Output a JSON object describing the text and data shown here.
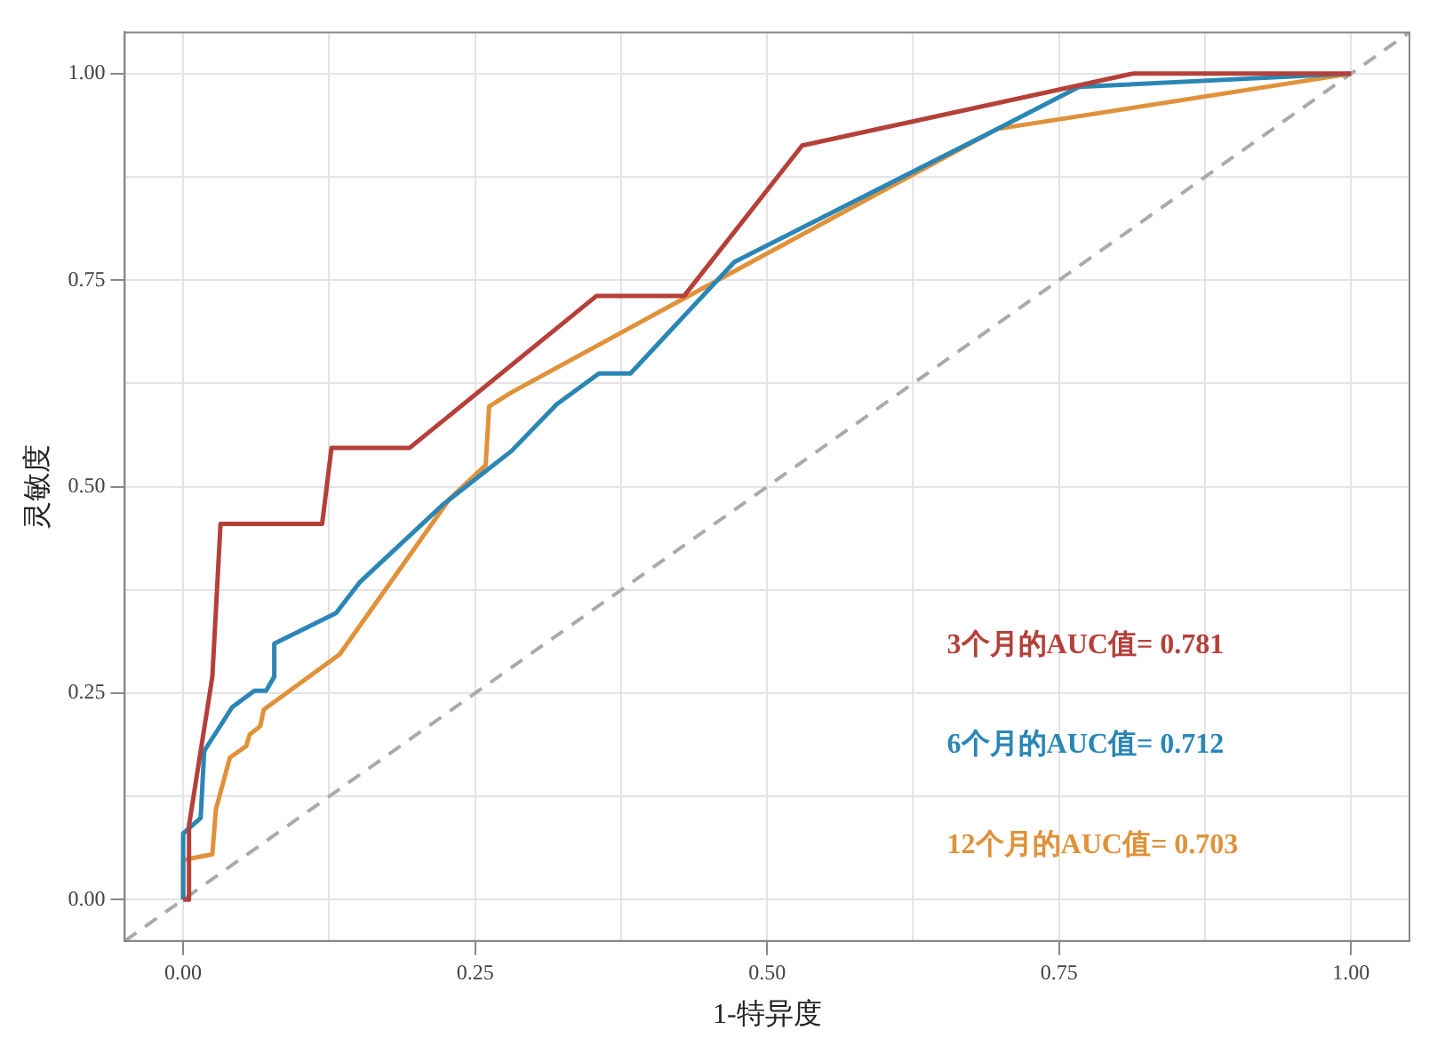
{
  "chart_data": {
    "type": "line",
    "xlabel": "1-特异度",
    "ylabel": "灵敏度",
    "series": [
      {
        "name": "3个月的AUC值= 0.781",
        "color": "#b5403a",
        "x": [
          0,
          0.005,
          0.005,
          0.025,
          0.032,
          0.119,
          0.127,
          0.194,
          0.354,
          0.429,
          0.53,
          0.813,
          1
        ],
        "values": [
          0,
          0,
          0.09,
          0.27,
          0.455,
          0.455,
          0.547,
          0.547,
          0.731,
          0.731,
          0.913,
          1,
          1
        ]
      },
      {
        "name": "6个月的AUC值= 0.712",
        "color": "#2a86b5",
        "x": [
          0,
          0,
          0.015,
          0.018,
          0.042,
          0.061,
          0.071,
          0.078,
          0.078,
          0.131,
          0.151,
          0.223,
          0.281,
          0.32,
          0.356,
          0.383,
          0.472,
          0.697,
          0.767,
          1
        ],
        "values": [
          0,
          0.08,
          0.099,
          0.18,
          0.233,
          0.253,
          0.253,
          0.27,
          0.31,
          0.347,
          0.384,
          0.479,
          0.543,
          0.6,
          0.637,
          0.637,
          0.772,
          0.933,
          0.984,
          1
        ]
      },
      {
        "name": "12个月的AUC值= 0.703",
        "color": "#e0923a",
        "x": [
          0,
          0,
          0.025,
          0.028,
          0.04,
          0.054,
          0.057,
          0.066,
          0.069,
          0.134,
          0.228,
          0.259,
          0.262,
          0.281,
          0.429,
          0.697,
          1
        ],
        "values": [
          0,
          0.048,
          0.055,
          0.109,
          0.172,
          0.186,
          0.2,
          0.21,
          0.23,
          0.297,
          0.485,
          0.526,
          0.597,
          0.614,
          0.728,
          0.933,
          1
        ]
      },
      {
        "color": "#aaaaaa",
        "line_style": "dashed",
        "x": [
          -0.05,
          1.05
        ],
        "values": [
          -0.05,
          1.05
        ]
      }
    ],
    "xlim": [
      -0.05,
      1.05
    ],
    "ylim": [
      -0.05,
      1.05
    ],
    "xticks": [
      {
        "value": 0,
        "label": "0.00"
      },
      {
        "value": 0.125,
        "label": null
      },
      {
        "value": 0.25,
        "label": "0.25"
      },
      {
        "value": 0.375,
        "label": null
      },
      {
        "value": 0.5,
        "label": "0.50"
      },
      {
        "value": 0.625,
        "label": null
      },
      {
        "value": 0.75,
        "label": "0.75"
      },
      {
        "value": 0.875,
        "label": null
      },
      {
        "value": 1,
        "label": "1.00"
      }
    ],
    "yticks": [
      {
        "value": 0,
        "label": "0.00"
      },
      {
        "value": 0.125,
        "label": null
      },
      {
        "value": 0.25,
        "label": "0.25"
      },
      {
        "value": 0.375,
        "label": null
      },
      {
        "value": 0.5,
        "label": "0.50"
      },
      {
        "value": 0.625,
        "label": null
      },
      {
        "value": 0.75,
        "label": "0.75"
      },
      {
        "value": 1,
        "label": "1.00"
      },
      {
        "value": 0.875,
        "label": null
      }
    ],
    "grid": true,
    "legend": false,
    "marker": "none",
    "line_style": "solid"
  }
}
